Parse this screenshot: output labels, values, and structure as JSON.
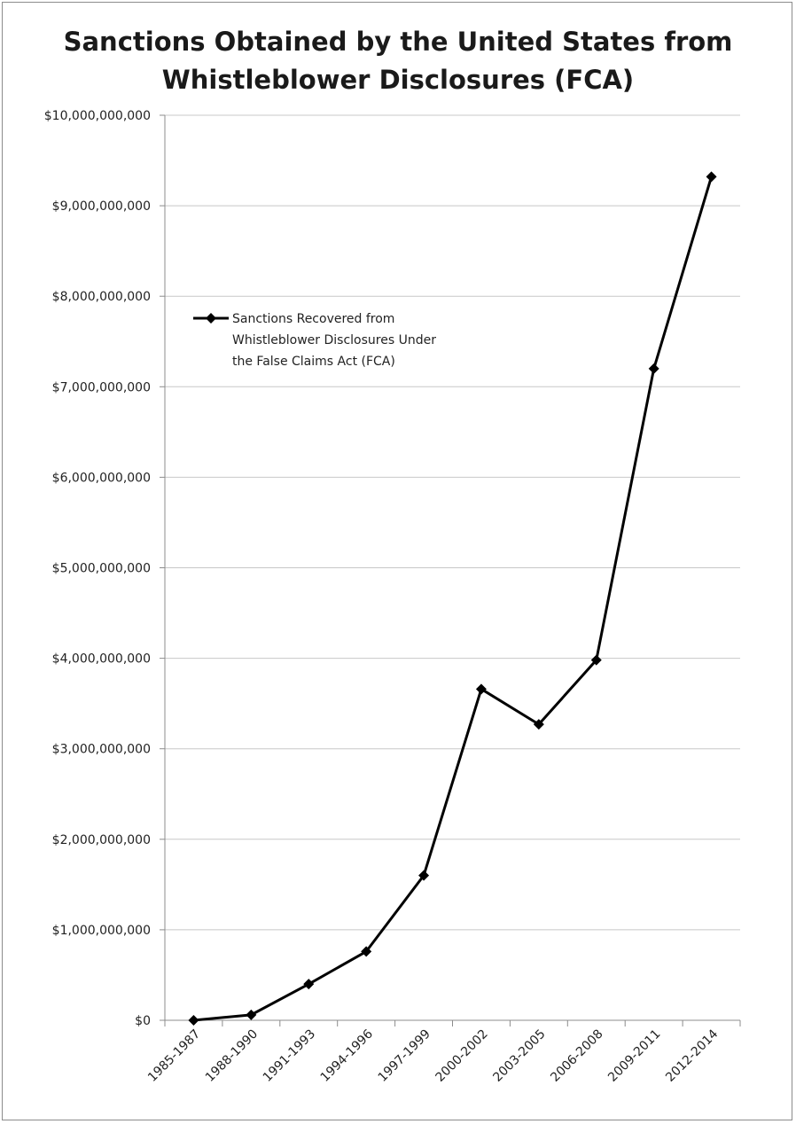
{
  "chart_data": {
    "type": "line",
    "title": "Sanctions Obtained by the United States from\nWhistleblower Disclosures (FCA)",
    "xlabel": "",
    "ylabel": "",
    "categories": [
      "1985-1987",
      "1988-1990",
      "1991-1993",
      "1994-1996",
      "1997-1999",
      "2000-2002",
      "2003-2005",
      "2006-2008",
      "2009-2011",
      "2012-2014"
    ],
    "series": [
      {
        "name": "Sanctions Recovered from Whistleblower Disclosures Under the False Claims Act (FCA)",
        "legend_lines": [
          "Sanctions Recovered from",
          "Whistleblower Disclosures Under",
          "the False Claims Act (FCA)"
        ],
        "values": [
          0,
          60000000,
          400000000,
          760000000,
          1600000000,
          3660000000,
          3270000000,
          3980000000,
          7200000000,
          9320000000
        ],
        "color": "#000000",
        "marker": "diamond"
      }
    ],
    "ylim": [
      0,
      10000000000
    ],
    "yticks": [
      0,
      1000000000,
      2000000000,
      3000000000,
      4000000000,
      5000000000,
      6000000000,
      7000000000,
      8000000000,
      9000000000,
      10000000000
    ],
    "ytick_labels": [
      "$0",
      "$1,000,000,000",
      "$2,000,000,000",
      "$3,000,000,000",
      "$4,000,000,000",
      "$5,000,000,000",
      "$6,000,000,000",
      "$7,000,000,000",
      "$8,000,000,000",
      "$9,000,000,000",
      "$10,000,000,000"
    ],
    "grid": true,
    "grid_color": "#c8c8c8",
    "legend_position": "top-left"
  }
}
